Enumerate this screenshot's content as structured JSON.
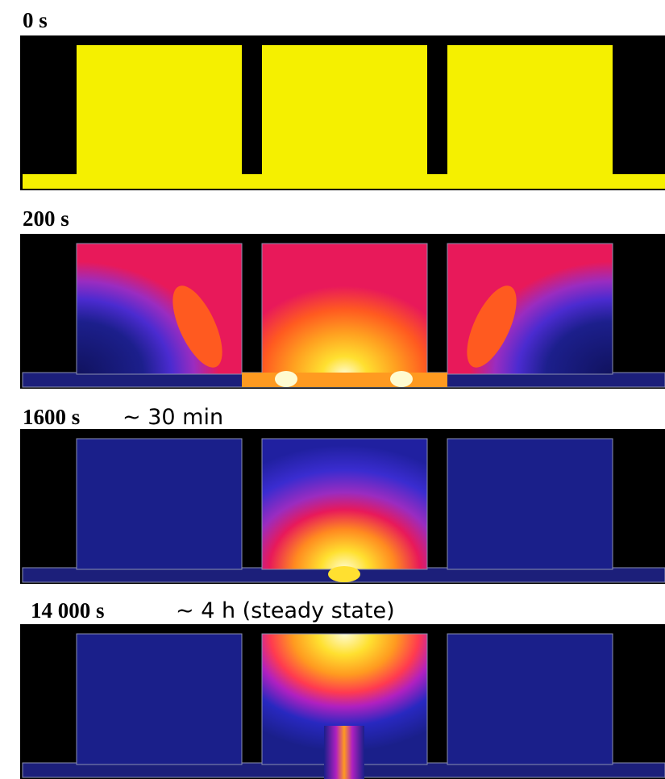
{
  "panels": [
    {
      "time": "0 s"
    },
    {
      "time": "200 s"
    },
    {
      "time": "1600 s",
      "note": "∼ 30 min"
    },
    {
      "time": "14 000 s",
      "note": "∼ 4 h (steady state)"
    }
  ]
}
